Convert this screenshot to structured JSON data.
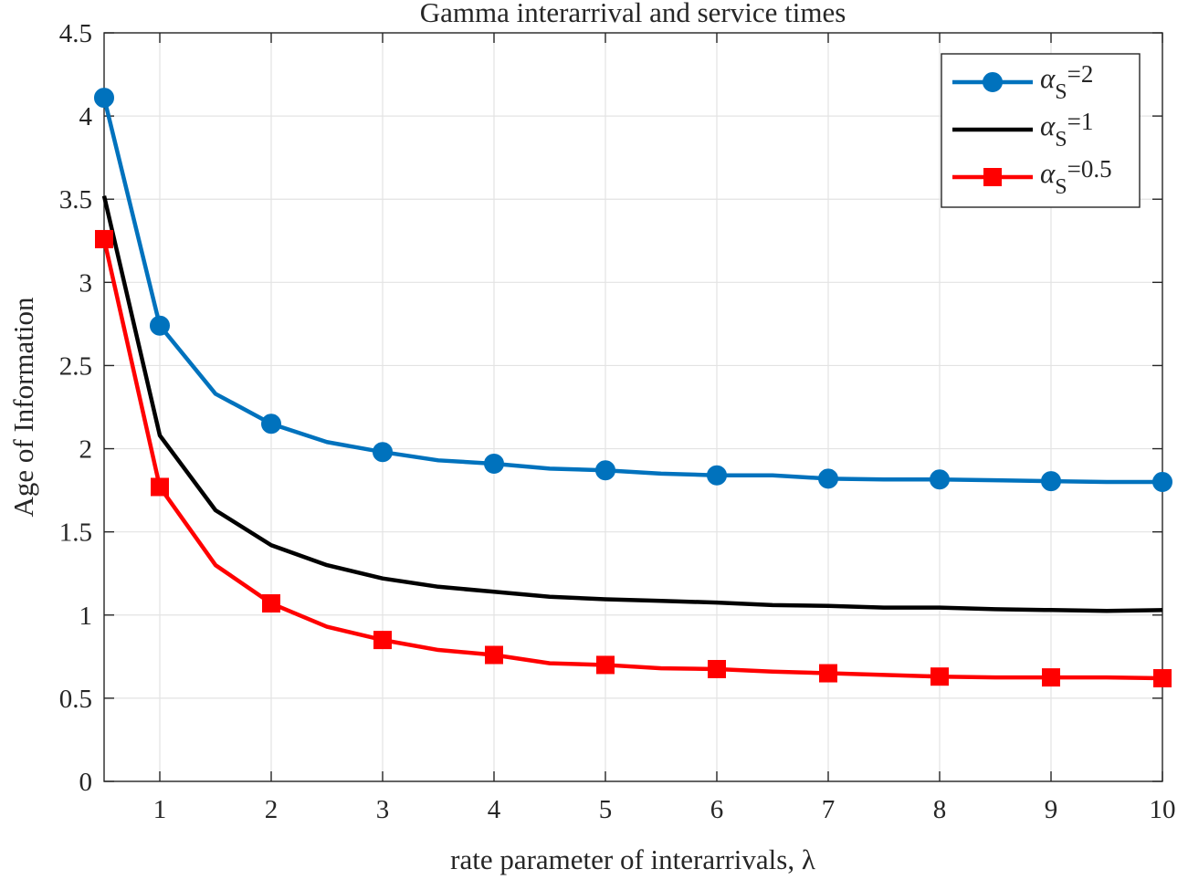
{
  "chart_data": {
    "type": "line",
    "title": "Gamma interarrival and service times",
    "xlabel": "rate parameter of interarrivals, λ",
    "ylabel": "Age of Information",
    "xlim": [
      0.5,
      10
    ],
    "ylim": [
      0,
      4.5
    ],
    "xticks": [
      1,
      2,
      3,
      4,
      5,
      6,
      7,
      8,
      9,
      10
    ],
    "xtick_labels": [
      "1",
      "2",
      "3",
      "4",
      "5",
      "6",
      "7",
      "8",
      "9",
      "10"
    ],
    "yticks": [
      0,
      0.5,
      1,
      1.5,
      2,
      2.5,
      3,
      3.5,
      4,
      4.5
    ],
    "ytick_labels": [
      "0",
      "0.5",
      "1",
      "1.5",
      "2",
      "2.5",
      "3",
      "3.5",
      "4",
      "4.5"
    ],
    "grid": true,
    "legend_position": "top-right",
    "x": [
      0.5,
      1,
      1.5,
      2,
      2.5,
      3,
      3.5,
      4,
      4.5,
      5,
      5.5,
      6,
      6.5,
      7,
      7.5,
      8,
      8.5,
      9,
      9.5,
      10
    ],
    "series": [
      {
        "name": "αS=2",
        "legend_base": "α",
        "legend_sub": "S",
        "legend_value": "=2",
        "color": "#0072BD",
        "marker": "circle",
        "marker_x": [
          0.5,
          1,
          2,
          3,
          4,
          5,
          6,
          7,
          8,
          9,
          10
        ],
        "values": [
          4.11,
          2.74,
          2.33,
          2.15,
          2.04,
          1.98,
          1.93,
          1.91,
          1.88,
          1.87,
          1.85,
          1.84,
          1.84,
          1.82,
          1.815,
          1.815,
          1.81,
          1.805,
          1.8,
          1.8
        ]
      },
      {
        "name": "αS=1",
        "legend_base": "α",
        "legend_sub": "S",
        "legend_value": "=1",
        "color": "#000000",
        "marker": "none",
        "marker_x": [],
        "values": [
          3.52,
          2.08,
          1.63,
          1.42,
          1.3,
          1.22,
          1.17,
          1.14,
          1.11,
          1.095,
          1.085,
          1.075,
          1.06,
          1.055,
          1.045,
          1.045,
          1.035,
          1.03,
          1.025,
          1.03
        ]
      },
      {
        "name": "αS=0.5",
        "legend_base": "α",
        "legend_sub": "S",
        "legend_value": "=0.5",
        "color": "#FF0000",
        "marker": "square",
        "marker_x": [
          0.5,
          1,
          2,
          3,
          4,
          5,
          6,
          7,
          8,
          9,
          10
        ],
        "values": [
          3.26,
          1.77,
          1.3,
          1.07,
          0.93,
          0.85,
          0.79,
          0.76,
          0.71,
          0.7,
          0.68,
          0.675,
          0.66,
          0.65,
          0.64,
          0.63,
          0.625,
          0.625,
          0.625,
          0.62
        ]
      }
    ]
  }
}
